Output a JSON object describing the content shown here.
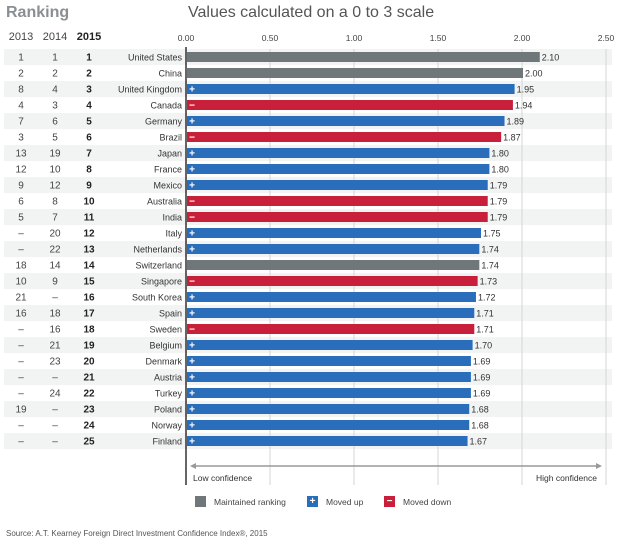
{
  "header": {
    "ranking_title": "Ranking",
    "chart_title": "Values calculated on a 0 to 3 scale",
    "year_columns": [
      "2013",
      "2014",
      "2015"
    ]
  },
  "legend": {
    "maintained": "Maintained ranking",
    "up": "Moved up",
    "down": "Moved down",
    "up_symbol": "+",
    "down_symbol": "−"
  },
  "colors": {
    "maintained": "#6f777b",
    "up": "#2a6ebb",
    "down": "#c8203b",
    "stripe": "#f2f3f3",
    "grid": "#d6d6d6"
  },
  "axis_footer": {
    "low": "Low confidence",
    "high": "High confidence"
  },
  "source": "Source: A.T. Kearney Foreign Direct Investment Confidence Index®, 2015",
  "chart_data": {
    "type": "bar",
    "orientation": "horizontal",
    "title": "Values calculated on a 0 to 3 scale",
    "xlabel": "",
    "ylabel": "",
    "xlim": [
      0,
      2.5
    ],
    "xticks": [
      "0.00",
      "0.50",
      "1.00",
      "1.50",
      "2.00",
      "2.50"
    ],
    "grid": true,
    "legend_position": "bottom",
    "categories": [
      "United States",
      "China",
      "United Kingdom",
      "Canada",
      "Germany",
      "Brazil",
      "Japan",
      "France",
      "Mexico",
      "Australia",
      "India",
      "Italy",
      "Netherlands",
      "Switzerland",
      "Singapore",
      "South Korea",
      "Spain",
      "Sweden",
      "Belgium",
      "Denmark",
      "Austria",
      "Turkey",
      "Poland",
      "Norway",
      "Finland"
    ],
    "values": [
      2.1,
      2.0,
      1.95,
      1.94,
      1.89,
      1.87,
      1.8,
      1.8,
      1.79,
      1.79,
      1.79,
      1.75,
      1.74,
      1.74,
      1.73,
      1.72,
      1.71,
      1.71,
      1.7,
      1.69,
      1.69,
      1.69,
      1.68,
      1.68,
      1.67
    ],
    "value_labels": [
      "2.10",
      "2.00",
      "1.95",
      "1.94",
      "1.89",
      "1.87",
      "1.80",
      "1.80",
      "1.79",
      "1.79",
      "1.79",
      "1.75",
      "1.74",
      "1.74",
      "1.73",
      "1.72",
      "1.71",
      "1.71",
      "1.70",
      "1.69",
      "1.69",
      "1.69",
      "1.68",
      "1.68",
      "1.67"
    ],
    "status": [
      "maintained",
      "maintained",
      "up",
      "down",
      "up",
      "down",
      "up",
      "up",
      "up",
      "down",
      "down",
      "up",
      "up",
      "maintained",
      "down",
      "up",
      "up",
      "down",
      "up",
      "up",
      "up",
      "up",
      "up",
      "up",
      "up"
    ],
    "rank_2013": [
      "1",
      "2",
      "8",
      "4",
      "7",
      "3",
      "13",
      "12",
      "9",
      "6",
      "5",
      "–",
      "–",
      "18",
      "10",
      "21",
      "16",
      "–",
      "–",
      "–",
      "–",
      "–",
      "19",
      "–",
      "–"
    ],
    "rank_2014": [
      "1",
      "2",
      "4",
      "3",
      "6",
      "5",
      "19",
      "10",
      "12",
      "8",
      "7",
      "20",
      "22",
      "14",
      "9",
      "–",
      "18",
      "16",
      "21",
      "23",
      "–",
      "24",
      "–",
      "–",
      "–"
    ],
    "rank_2015": [
      "1",
      "2",
      "3",
      "4",
      "5",
      "6",
      "7",
      "8",
      "9",
      "10",
      "11",
      "12",
      "13",
      "14",
      "15",
      "16",
      "17",
      "18",
      "19",
      "20",
      "21",
      "22",
      "23",
      "24",
      "25"
    ]
  }
}
